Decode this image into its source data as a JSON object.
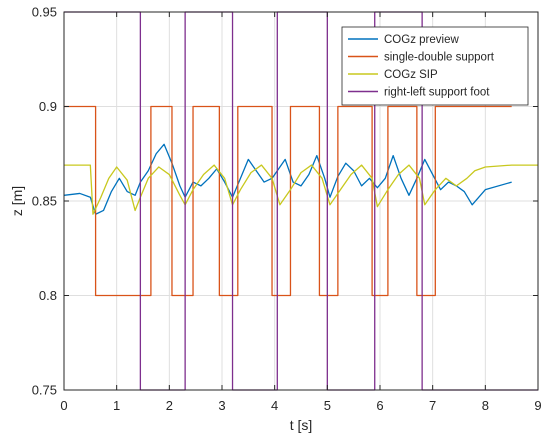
{
  "chart_data": {
    "type": "line",
    "title": "",
    "xlabel": "t [s]",
    "ylabel": "z [m]",
    "xlim": [
      0,
      9
    ],
    "ylim": [
      0.75,
      0.95
    ],
    "xticks": [
      0,
      1,
      2,
      3,
      4,
      5,
      6,
      7,
      8,
      9
    ],
    "xtick_labels": [
      "0",
      "1",
      "2",
      "3",
      "4",
      "5",
      "6",
      "7",
      "8",
      "9"
    ],
    "yticks": [
      0.75,
      0.8,
      0.85,
      0.9,
      0.95
    ],
    "ytick_labels": [
      "0.75",
      "0.8",
      "0.85",
      "0.9",
      "0.95"
    ],
    "grid": true,
    "legend_position": "top-right",
    "series": [
      {
        "name": "COGz preview",
        "color": "#0072BD",
        "x": [
          0,
          0.3,
          0.5,
          0.6,
          0.75,
          0.9,
          1.05,
          1.2,
          1.35,
          1.45,
          1.6,
          1.75,
          1.9,
          2.05,
          2.2,
          2.3,
          2.45,
          2.6,
          2.75,
          2.9,
          3.05,
          3.2,
          3.35,
          3.5,
          3.65,
          3.8,
          3.95,
          4.05,
          4.2,
          4.35,
          4.5,
          4.65,
          4.8,
          4.95,
          5.05,
          5.2,
          5.35,
          5.5,
          5.65,
          5.8,
          5.95,
          6.1,
          6.25,
          6.4,
          6.55,
          6.7,
          6.85,
          7.0,
          7.15,
          7.3,
          7.45,
          7.6,
          7.75,
          8.0,
          8.5
        ],
        "values": [
          0.853,
          0.854,
          0.852,
          0.843,
          0.845,
          0.855,
          0.862,
          0.855,
          0.853,
          0.86,
          0.866,
          0.875,
          0.88,
          0.87,
          0.858,
          0.852,
          0.86,
          0.858,
          0.862,
          0.867,
          0.86,
          0.852,
          0.862,
          0.872,
          0.866,
          0.86,
          0.862,
          0.866,
          0.872,
          0.86,
          0.858,
          0.864,
          0.874,
          0.862,
          0.852,
          0.863,
          0.87,
          0.866,
          0.858,
          0.862,
          0.857,
          0.862,
          0.874,
          0.862,
          0.853,
          0.862,
          0.872,
          0.864,
          0.856,
          0.86,
          0.858,
          0.855,
          0.848,
          0.856,
          0.86
        ]
      },
      {
        "name": "single-double support",
        "color": "#D95319",
        "x": [
          0,
          0.6,
          0.6,
          0.7,
          0.7,
          0.9,
          0.9,
          1.65,
          1.65,
          2.05,
          2.05,
          2.45,
          2.45,
          2.95,
          2.95,
          3.3,
          3.3,
          3.95,
          3.95,
          4.3,
          4.3,
          4.85,
          4.85,
          5.2,
          5.2,
          5.85,
          5.85,
          6.15,
          6.15,
          6.7,
          6.7,
          7.05,
          7.05,
          7.6,
          7.6,
          8.5
        ],
        "values": [
          0.9,
          0.9,
          0.8,
          0.8,
          0.8,
          0.8,
          0.8,
          0.8,
          0.9,
          0.9,
          0.8,
          0.8,
          0.9,
          0.9,
          0.8,
          0.8,
          0.9,
          0.9,
          0.8,
          0.8,
          0.9,
          0.9,
          0.8,
          0.8,
          0.9,
          0.9,
          0.8,
          0.8,
          0.9,
          0.9,
          0.8,
          0.8,
          0.9,
          0.9,
          0.9,
          0.9
        ]
      },
      {
        "name": "COGz SIP",
        "color": "#C8C81E",
        "x": [
          0,
          0.5,
          0.55,
          0.7,
          0.85,
          1.0,
          1.2,
          1.35,
          1.45,
          1.6,
          1.8,
          2.0,
          2.2,
          2.3,
          2.45,
          2.65,
          2.85,
          3.05,
          3.2,
          3.35,
          3.55,
          3.75,
          3.95,
          4.1,
          4.3,
          4.5,
          4.7,
          4.9,
          5.05,
          5.25,
          5.45,
          5.65,
          5.85,
          5.95,
          6.15,
          6.35,
          6.55,
          6.75,
          6.85,
          7.05,
          7.25,
          7.45,
          7.65,
          7.8,
          8.0,
          8.5,
          9.0
        ],
        "values": [
          0.869,
          0.869,
          0.843,
          0.852,
          0.862,
          0.868,
          0.861,
          0.845,
          0.852,
          0.862,
          0.868,
          0.864,
          0.853,
          0.848,
          0.856,
          0.864,
          0.869,
          0.862,
          0.848,
          0.856,
          0.865,
          0.869,
          0.862,
          0.848,
          0.856,
          0.865,
          0.869,
          0.862,
          0.848,
          0.856,
          0.864,
          0.869,
          0.862,
          0.847,
          0.856,
          0.864,
          0.869,
          0.862,
          0.848,
          0.856,
          0.862,
          0.858,
          0.862,
          0.866,
          0.868,
          0.869,
          0.869
        ]
      },
      {
        "name": "right-left support foot",
        "color": "#7E2F8E",
        "x": [
          0,
          1.45,
          1.45,
          2.3,
          2.3,
          3.2,
          3.2,
          4.05,
          4.05,
          5.0,
          5.0,
          5.9,
          5.9,
          6.8,
          6.8,
          9.0
        ],
        "values": [
          0.95,
          0.95,
          0.75,
          0.75,
          0.95,
          0.95,
          0.75,
          0.75,
          0.95,
          0.95,
          0.75,
          0.75,
          0.95,
          0.95,
          0.75,
          0.75
        ]
      }
    ]
  }
}
